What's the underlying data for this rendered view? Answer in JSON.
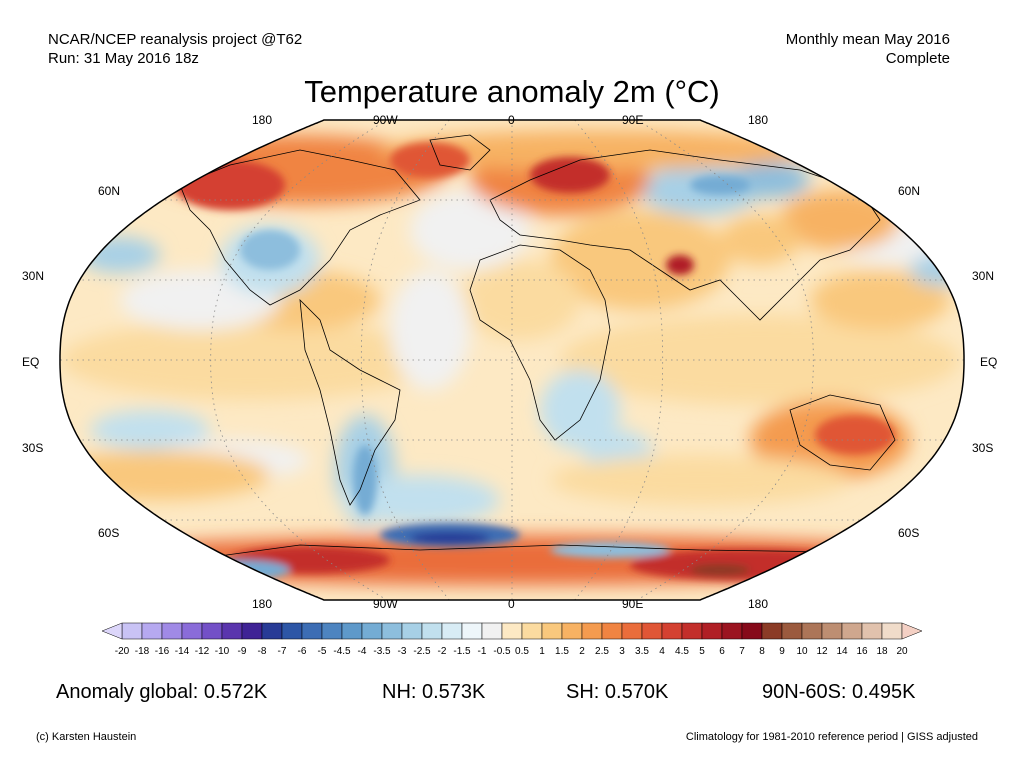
{
  "header": {
    "project": "NCAR/NCEP reanalysis project @T62",
    "run": "Run: 31 May 2016 18z",
    "period": "Monthly mean May 2016",
    "status": "Complete"
  },
  "title": "Temperature anomaly 2m (°C)",
  "lon_labels": [
    "180",
    "90W",
    "0",
    "90E",
    "180"
  ],
  "lat_labels": [
    "60N",
    "30N",
    "EQ",
    "30S",
    "60S"
  ],
  "colorbar": {
    "ticks": [
      "-20",
      "-18",
      "-16",
      "-14",
      "-12",
      "-10",
      "-9",
      "-8",
      "-7",
      "-6",
      "-5",
      "-4.5",
      "-4",
      "-3.5",
      "-3",
      "-2.5",
      "-2",
      "-1.5",
      "-1",
      "-0.5",
      "0.5",
      "1",
      "1.5",
      "2",
      "2.5",
      "3",
      "3.5",
      "4",
      "4.5",
      "5",
      "6",
      "7",
      "8",
      "9",
      "10",
      "12",
      "14",
      "16",
      "18",
      "20"
    ],
    "colors": [
      "#c9c3f5",
      "#b6a9f0",
      "#a08ae6",
      "#8a6cd9",
      "#7350c7",
      "#5a35ad",
      "#3f2395",
      "#283b96",
      "#2d56a6",
      "#3c6db4",
      "#4d84c0",
      "#5e99ca",
      "#74acd4",
      "#8dbedd",
      "#a7d0e6",
      "#c1e0ee",
      "#d8ecf5",
      "#eef6fa",
      "#f1f1f1",
      "#fde9c4",
      "#fbdba0",
      "#f9c87d",
      "#f7b263",
      "#f49b4f",
      "#f08442",
      "#ea6d3b",
      "#e05636",
      "#d44131",
      "#c32f2b",
      "#b01f25",
      "#9b1420",
      "#860a1a",
      "#8b3b26",
      "#9b5a3e",
      "#ac7558",
      "#bd8e72",
      "#cfa78e",
      "#e1c2ad",
      "#f0dcca"
    ]
  },
  "stats": {
    "global": "Anomaly global: 0.572K",
    "nh": "NH: 0.573K",
    "sh": "SH: 0.570K",
    "arctic": "90N-60S: 0.495K"
  },
  "footer": {
    "credit": "(c) Karsten Haustein",
    "note": "Climatology for 1981-2010 reference period | GISS adjusted"
  }
}
